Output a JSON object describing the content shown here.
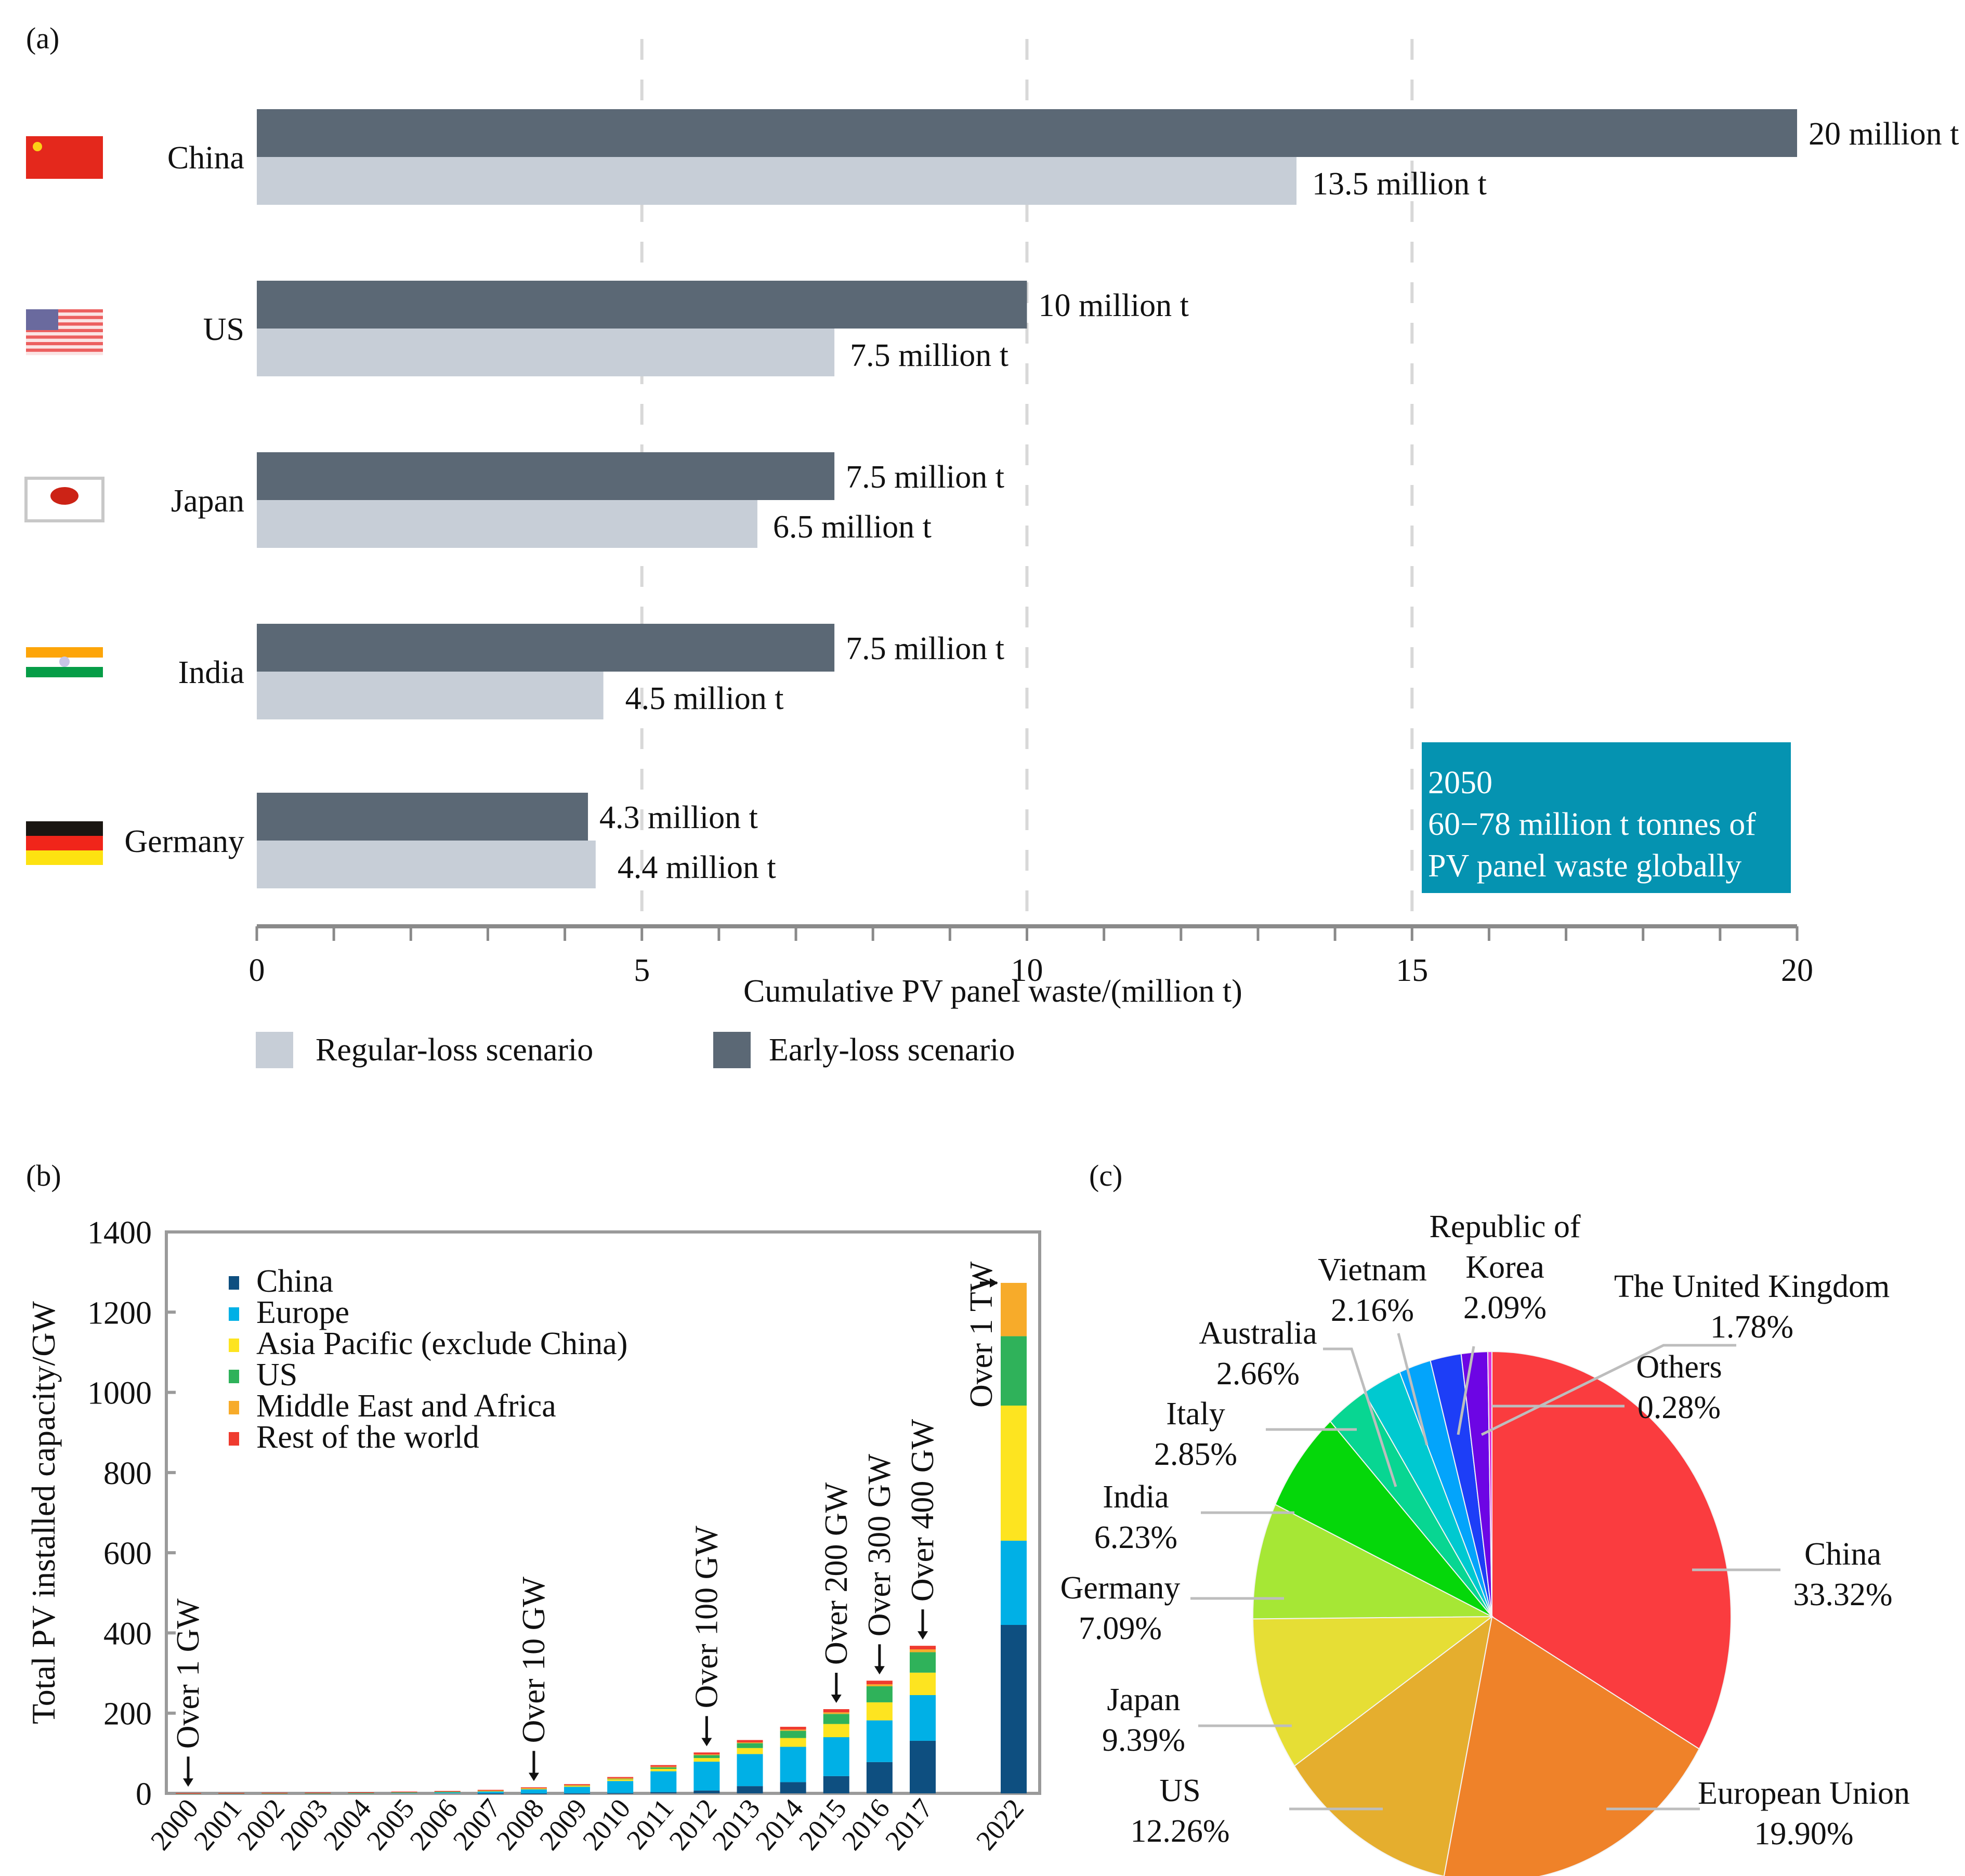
{
  "panel_labels": {
    "a": "(a)",
    "b": "(b)",
    "c": "(c)"
  },
  "colors": {
    "early_loss": "#5b6875",
    "regular_loss": "#c7ced7",
    "callout_bg": "#0593b1",
    "grid_dash": "#d8d8d8"
  },
  "chart_data": [
    {
      "type": "bar",
      "orientation": "horizontal",
      "title": "",
      "xlabel": "Cumulative PV panel waste/(million t)",
      "ylabel": "",
      "xlim": [
        0,
        20
      ],
      "xticks": [
        0,
        5,
        10,
        15,
        20
      ],
      "grid": "vertical dashed at 5, 10, 15",
      "legend_position": "bottom-left",
      "categories": [
        "China",
        "US",
        "Japan",
        "India",
        "Germany"
      ],
      "flags": [
        "flag-china-icon",
        "flag-us-icon",
        "flag-japan-icon",
        "flag-india-icon",
        "flag-germany-icon"
      ],
      "series": [
        {
          "name": "Early-loss scenario",
          "color": "#5b6875",
          "values": [
            20,
            10,
            7.5,
            7.5,
            4.3
          ],
          "labels": [
            "20 million t",
            "10 million t",
            "7.5 million t",
            "7.5 million t",
            "4.3 million t"
          ]
        },
        {
          "name": "Regular-loss scenario",
          "color": "#c7ced7",
          "values": [
            13.5,
            7.5,
            6.5,
            4.5,
            4.4
          ],
          "labels": [
            "13.5 million t",
            "7.5 million t",
            "6.5 million t",
            "4.5 million t",
            "4.4 million t"
          ]
        }
      ],
      "legend": [
        "Regular-loss scenario",
        "Early-loss scenario"
      ],
      "annotation": {
        "line1": "2050",
        "line2": "60−78 million t tonnes of",
        "line3": "PV panel waste globally"
      }
    },
    {
      "type": "bar",
      "stacked": true,
      "title": "",
      "xlabel": "",
      "ylabel": "Total PV installed capacity/GW",
      "ylim": [
        0,
        1400
      ],
      "yticks": [
        0,
        200,
        400,
        600,
        800,
        1000,
        1200,
        1400
      ],
      "legend_position": "top-left",
      "categories": [
        "2000",
        "2001",
        "2002",
        "2003",
        "2004",
        "2005",
        "2006",
        "2007",
        "2008",
        "2009",
        "2010",
        "2011",
        "2012",
        "2013",
        "2014",
        "2015",
        "2016",
        "2017",
        "2022"
      ],
      "series": [
        {
          "name": "China",
          "color": "#0e4f80",
          "values": [
            0,
            0,
            0,
            0,
            0,
            0,
            0,
            0.1,
            0.1,
            0.3,
            0.8,
            3,
            7,
            18,
            28,
            43,
            78,
            131,
            420
          ]
        },
        {
          "name": "Europe",
          "color": "#00b0e6",
          "values": [
            0.1,
            0.2,
            0.3,
            0.4,
            0.7,
            2,
            3,
            5,
            10,
            16,
            30,
            52,
            72,
            80,
            88,
            97,
            104,
            114,
            210
          ]
        },
        {
          "name": "Asia Pacific (exclude China)",
          "color": "#fde420",
          "values": [
            0.3,
            0.4,
            0.5,
            0.6,
            0.8,
            1,
            1.2,
            1.4,
            1.8,
            2.3,
            4,
            6,
            9,
            15,
            22,
            33,
            45,
            56,
            337
          ]
        },
        {
          "name": "US",
          "color": "#2fb25a",
          "values": [
            0.1,
            0.1,
            0.2,
            0.2,
            0.3,
            0.4,
            0.5,
            0.7,
            1,
            1.6,
            2.5,
            4.5,
            7.5,
            12,
            18,
            25,
            40,
            51,
            173
          ]
        },
        {
          "name": "Middle East and Africa",
          "color": "#f7ab2a",
          "values": [
            0,
            0,
            0,
            0,
            0,
            0,
            0,
            0.1,
            0.2,
            0.3,
            0.5,
            1,
            1.5,
            2,
            3,
            4,
            5,
            7,
            133
          ]
        },
        {
          "name": "Rest of the world",
          "color": "#ef3b2f",
          "values": [
            0.4,
            0.5,
            0.6,
            0.7,
            0.8,
            1,
            1.2,
            1.5,
            2,
            2.5,
            3,
            4,
            5,
            6,
            7,
            8,
            9,
            9,
            0
          ]
        }
      ],
      "annotations": [
        {
          "text": "Over 1 GW",
          "category": "2000"
        },
        {
          "text": "Over 10 GW",
          "category": "2008"
        },
        {
          "text": "Over 100 GW",
          "category": "2012"
        },
        {
          "text": "Over 200 GW",
          "category": "2015"
        },
        {
          "text": "Over 300 GW",
          "category": "2016"
        },
        {
          "text": "Over 400 GW",
          "category": "2017"
        },
        {
          "text": "Over 1 TW",
          "category": "2022"
        }
      ]
    },
    {
      "type": "pie",
      "title": "",
      "slices": [
        {
          "label": "China",
          "value": 33.32,
          "text": "33.32%",
          "color": "#fa3c3f"
        },
        {
          "label": "European Union",
          "value": 19.9,
          "text": "19.90%",
          "color": "#ef8229"
        },
        {
          "label": "US",
          "value": 12.26,
          "text": "12.26%",
          "color": "#e5ae2e"
        },
        {
          "label": "Japan",
          "value": 9.39,
          "text": "9.39%",
          "color": "#e6de35"
        },
        {
          "label": "Germany",
          "value": 7.09,
          "text": "7.09%",
          "color": "#a6e735"
        },
        {
          "label": "India",
          "value": 6.23,
          "text": "6.23%",
          "color": "#05d70a"
        },
        {
          "label": "Italy",
          "value": 2.85,
          "text": "2.85%",
          "color": "#08d692"
        },
        {
          "label": "Australia",
          "value": 2.66,
          "text": "2.66%",
          "color": "#00c9d0"
        },
        {
          "label": "Vietnam",
          "value": 2.16,
          "text": "2.16%",
          "color": "#03a4fb"
        },
        {
          "label": "Republic of Korea",
          "value": 2.09,
          "text": "2.09%",
          "color": "#1d3ef7"
        },
        {
          "label": "The United Kingdom",
          "value": 1.78,
          "text": "1.78%",
          "color": "#6d05e4"
        },
        {
          "label": "Others",
          "value": 0.28,
          "text": "0.28%",
          "color": "#e12fd6"
        }
      ]
    }
  ]
}
